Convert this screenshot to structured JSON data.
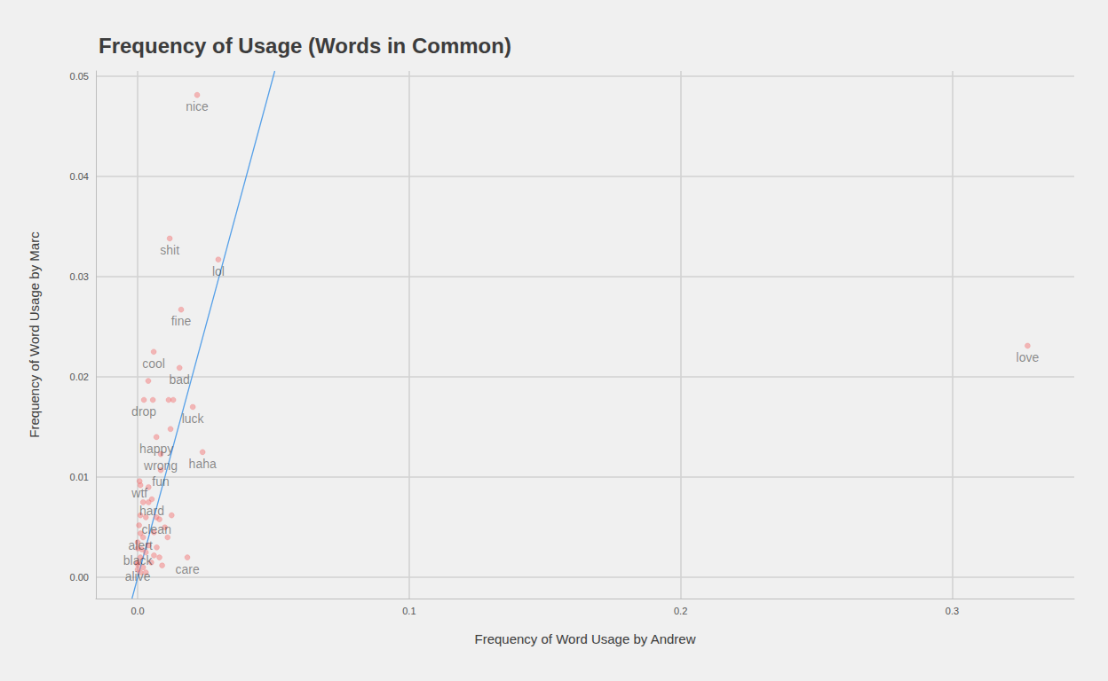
{
  "chart_data": {
    "type": "scatter",
    "title": "Frequency of Usage (Words in Common)",
    "x_label": "Frequency of Word Usage by Andrew",
    "y_label": "Frequency of Word Usage by Marc",
    "xlim": [
      -0.0154,
      0.345
    ],
    "ylim": [
      -0.0021,
      0.0505
    ],
    "xticks": [
      {
        "value": 0,
        "label": "0.0"
      },
      {
        "value": 0.1,
        "label": "0.1"
      },
      {
        "value": 0.2,
        "label": "0.2"
      },
      {
        "value": 0.3,
        "label": "0.3"
      }
    ],
    "yticks": [
      {
        "value": 0,
        "label": "0.00"
      },
      {
        "value": 0.01,
        "label": "0.01"
      },
      {
        "value": 0.02,
        "label": "0.02"
      },
      {
        "value": 0.03,
        "label": "0.03"
      },
      {
        "value": 0.04,
        "label": "0.04"
      },
      {
        "value": 0.05,
        "label": "0.05"
      }
    ],
    "grid": true,
    "series": [
      {
        "type": "scatter",
        "color": "#f26d6d",
        "marker": "circle",
        "x": [
          0.0219,
          0.0118,
          0.0297,
          0.016,
          0.0059,
          0.0154,
          0.0039,
          0.0023,
          0.0056,
          0.0114,
          0.0131,
          0.0203,
          0.0069,
          0.0121,
          0.0239,
          0.0085,
          0.0085,
          0.0007,
          0.0052,
          0.0069,
          0.001,
          0.0,
          0.0,
          0.0183,
          0.3278,
          0.001,
          0.002,
          0.004,
          0.003,
          0.001,
          0.008,
          0.01,
          0.006,
          0.002,
          0.0,
          0.004,
          0.007,
          0.003,
          0.001,
          0.0,
          0.002,
          0.005,
          0.009,
          0.011,
          0.0125,
          0.006,
          0.001,
          0.0,
          0.003,
          0.008,
          0.004,
          0.0015,
          0.0005
        ],
        "values": [
          0.0481,
          0.0338,
          0.0317,
          0.0267,
          0.0225,
          0.0209,
          0.0196,
          0.0177,
          0.0177,
          0.0177,
          0.0177,
          0.017,
          0.014,
          0.0148,
          0.0125,
          0.0123,
          0.0107,
          0.0096,
          0.0078,
          0.006,
          0.0044,
          0.0029,
          0.0013,
          0.002,
          0.0231,
          0.0092,
          0.0075,
          0.0075,
          0.006,
          0.0062,
          0.0058,
          0.005,
          0.0045,
          0.004,
          0.0035,
          0.0032,
          0.003,
          0.0025,
          0.002,
          0.0015,
          0.001,
          0.0015,
          0.0012,
          0.004,
          0.0062,
          0.0022,
          0.0005,
          0.0008,
          0.0005,
          0.002,
          0.009,
          0.0028,
          0.0052
        ],
        "labels": [
          "nice",
          "shit",
          "lol",
          "fine",
          "cool",
          "bad",
          null,
          "drop",
          null,
          null,
          null,
          "luck",
          "happy",
          null,
          "haha",
          "wrong",
          "fun",
          "wtf",
          "hard",
          "clean",
          "alert",
          "black",
          "alive",
          "care",
          "love",
          null,
          null,
          null,
          null,
          null,
          null,
          null,
          null,
          null,
          null,
          null,
          null,
          null,
          null,
          null,
          null,
          null,
          null,
          null,
          null,
          null,
          null,
          null,
          null,
          null,
          null,
          null,
          null
        ]
      },
      {
        "type": "line",
        "color": "#56a0e8",
        "line_style": "solid",
        "x": [
          -0.0021,
          0.0505
        ],
        "values": [
          -0.0021,
          0.0505
        ]
      }
    ]
  }
}
